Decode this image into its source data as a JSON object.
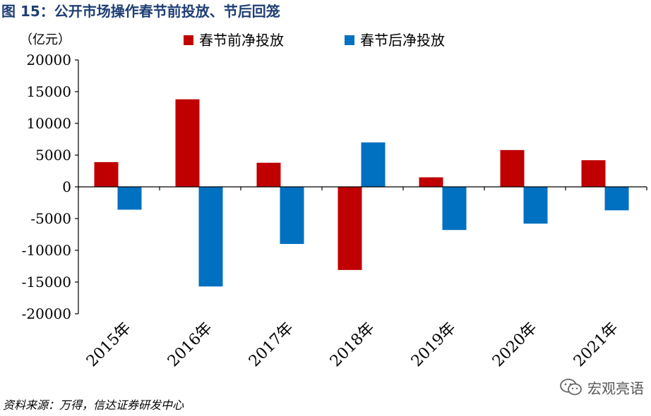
{
  "figure_title": "图 15：公开市场操作春节前投放、节后回笼",
  "source_note": "资料来源：万得，信达证券研发中心",
  "watermark": "宏观亮语",
  "colors": {
    "before": "#c00000",
    "after": "#0070c0",
    "title": "#1f3e74"
  },
  "chart_data": {
    "type": "bar",
    "title": "",
    "xlabel": "",
    "ylabel": "（亿元）",
    "ylim": [
      -20000,
      20000
    ],
    "yticks": [
      20000,
      15000,
      10000,
      5000,
      0,
      -5000,
      -10000,
      -15000,
      -20000
    ],
    "grid": false,
    "legend_position": "top",
    "categories": [
      "2015年",
      "2016年",
      "2017年",
      "2018年",
      "2019年",
      "2020年",
      "2021年"
    ],
    "series": [
      {
        "name": "春节前净投放",
        "values": [
          3900,
          13800,
          3800,
          -13100,
          1500,
          5800,
          4200
        ]
      },
      {
        "name": "春节后净投放",
        "values": [
          -3600,
          -15700,
          -9000,
          7000,
          -6800,
          -5800,
          -3700
        ]
      }
    ]
  }
}
